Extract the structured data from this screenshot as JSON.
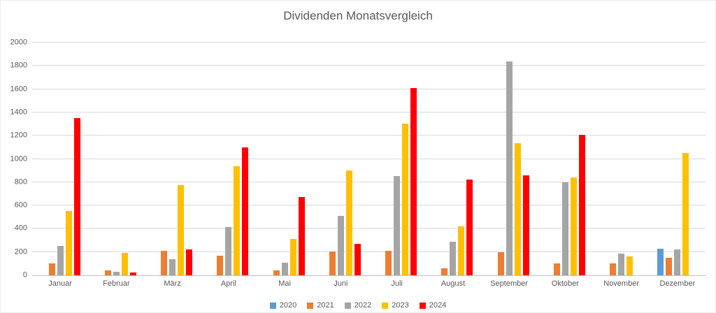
{
  "chart_data": {
    "type": "bar",
    "title": "Dividenden Monatsvergleich",
    "xlabel": "",
    "ylabel": "",
    "ylim": [
      0,
      2000
    ],
    "y_step": 200,
    "y_ticks": [
      0,
      200,
      400,
      600,
      800,
      1000,
      1200,
      1400,
      1600,
      1800,
      2000
    ],
    "grid": true,
    "legend_position": "bottom",
    "categories": [
      "Januar",
      "Februar",
      "März",
      "April",
      "Mai",
      "Juni",
      "Juli",
      "August",
      "September",
      "Oktober",
      "November",
      "Dezember"
    ],
    "series": [
      {
        "name": "2020",
        "color": "#5B9BD5",
        "values": [
          0,
          0,
          0,
          0,
          0,
          0,
          0,
          0,
          0,
          0,
          0,
          230
        ]
      },
      {
        "name": "2021",
        "color": "#ED7D31",
        "values": [
          100,
          40,
          210,
          170,
          45,
          205,
          210,
          60,
          200,
          105,
          100,
          150
        ]
      },
      {
        "name": "2022",
        "color": "#A5A5A5",
        "values": [
          250,
          30,
          140,
          415,
          110,
          510,
          850,
          290,
          1835,
          800,
          185,
          220
        ]
      },
      {
        "name": "2023",
        "color": "#FFC000",
        "values": [
          555,
          195,
          775,
          935,
          310,
          900,
          1305,
          420,
          1135,
          840,
          160,
          1050
        ]
      },
      {
        "name": "2024",
        "color": "#FF0000",
        "values": [
          1350,
          25,
          220,
          1100,
          670,
          270,
          1610,
          820,
          860,
          1210,
          0,
          0
        ]
      }
    ],
    "colors": {
      "text": "#595959",
      "gridline": "#D9D9D9",
      "axis_line": "#BFBFBF",
      "background": "#FFFFFF"
    }
  }
}
